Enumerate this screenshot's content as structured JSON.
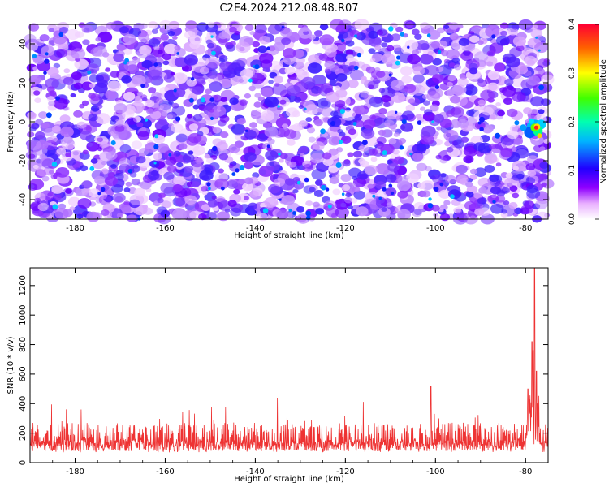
{
  "title": "C2E4.2024.212.08.48.R07",
  "chart_data": [
    {
      "type": "heatmap",
      "xlabel": "Height of straight line (km)",
      "ylabel": "Frequency (Hz)",
      "xlim": [
        -190,
        -75
      ],
      "ylim": [
        -50,
        50
      ],
      "xticks": [
        -180,
        -160,
        -140,
        -120,
        -100,
        -80
      ],
      "yticks": [
        -40,
        -20,
        0,
        20,
        40
      ],
      "colorbar": {
        "label": "Normalized spectral amplitude",
        "range": [
          0.0,
          0.4
        ],
        "ticks": [
          0.0,
          0.1,
          0.2,
          0.3,
          0.4
        ],
        "colors": [
          "#ffffff",
          "#ff00ff",
          "#6600ff",
          "#0000ff",
          "#00ffff",
          "#00ff00",
          "#ffff00",
          "#ff0000"
        ]
      },
      "background_level": 0.06,
      "hotspot": {
        "x": -78,
        "y": -3,
        "peak": 0.4
      },
      "grid": false
    },
    {
      "type": "line",
      "xlabel": "Height of straight line (km)",
      "ylabel": "SNR (10 * v/v)",
      "xlim": [
        -190,
        -75
      ],
      "ylim": [
        0,
        1320
      ],
      "xticks": [
        -180,
        -160,
        -140,
        -120,
        -100,
        -80
      ],
      "yticks": [
        0,
        200,
        400,
        600,
        800,
        1000,
        1200
      ],
      "series": [
        {
          "color": "#ee3333",
          "baseline_mean": 170,
          "baseline_max": 440,
          "points": [
            [
              -101,
              520
            ],
            [
              -79.5,
              500
            ],
            [
              -78.6,
              820
            ],
            [
              -78.3,
              760
            ],
            [
              -78.0,
              1320
            ],
            [
              -77.6,
              620
            ]
          ]
        }
      ],
      "grid": false
    }
  ]
}
